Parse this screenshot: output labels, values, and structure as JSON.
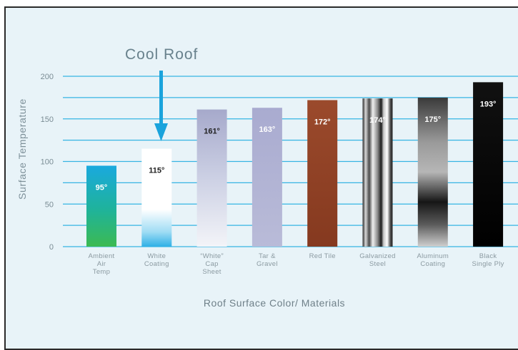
{
  "chart_data": {
    "type": "bar",
    "title": "",
    "annotation": "Cool Roof",
    "annotated_category_index": 1,
    "xlabel": "Roof Surface Color/ Materials",
    "ylabel": "Surface Temperature",
    "ylim": [
      0,
      200
    ],
    "yticks": [
      0,
      50,
      100,
      150,
      200
    ],
    "grid": true,
    "categories": [
      [
        "Ambient",
        "Air",
        "Temp"
      ],
      [
        "White",
        "Coating"
      ],
      [
        "“White”",
        "Cap",
        "Sheet"
      ],
      [
        "Tar &",
        "Gravel"
      ],
      [
        "Red Tile"
      ],
      [
        "Galvanized",
        "Steel"
      ],
      [
        "Aluminum",
        "Coating"
      ],
      [
        "Black",
        "Single Ply"
      ]
    ],
    "values": [
      95,
      115,
      161,
      163,
      172,
      174,
      175,
      193
    ],
    "value_labels": [
      "95°",
      "115°",
      "161°",
      "163°",
      "172°",
      "174°",
      "175°",
      "193°"
    ],
    "bar_fills": [
      "ambient",
      "white",
      "capsheet",
      "tar",
      "redtile",
      "steel",
      "aluminum",
      "black"
    ],
    "value_label_colors": [
      "#ffffff",
      "#222222",
      "#222222",
      "#ffffff",
      "#ffffff",
      "#ffffff",
      "#ffffff",
      "#ffffff"
    ]
  },
  "colors": {
    "background": "#e8f3f8",
    "gridline": "#35b4e3",
    "arrow": "#1aa3dc",
    "frame": "#2a2a2a"
  }
}
